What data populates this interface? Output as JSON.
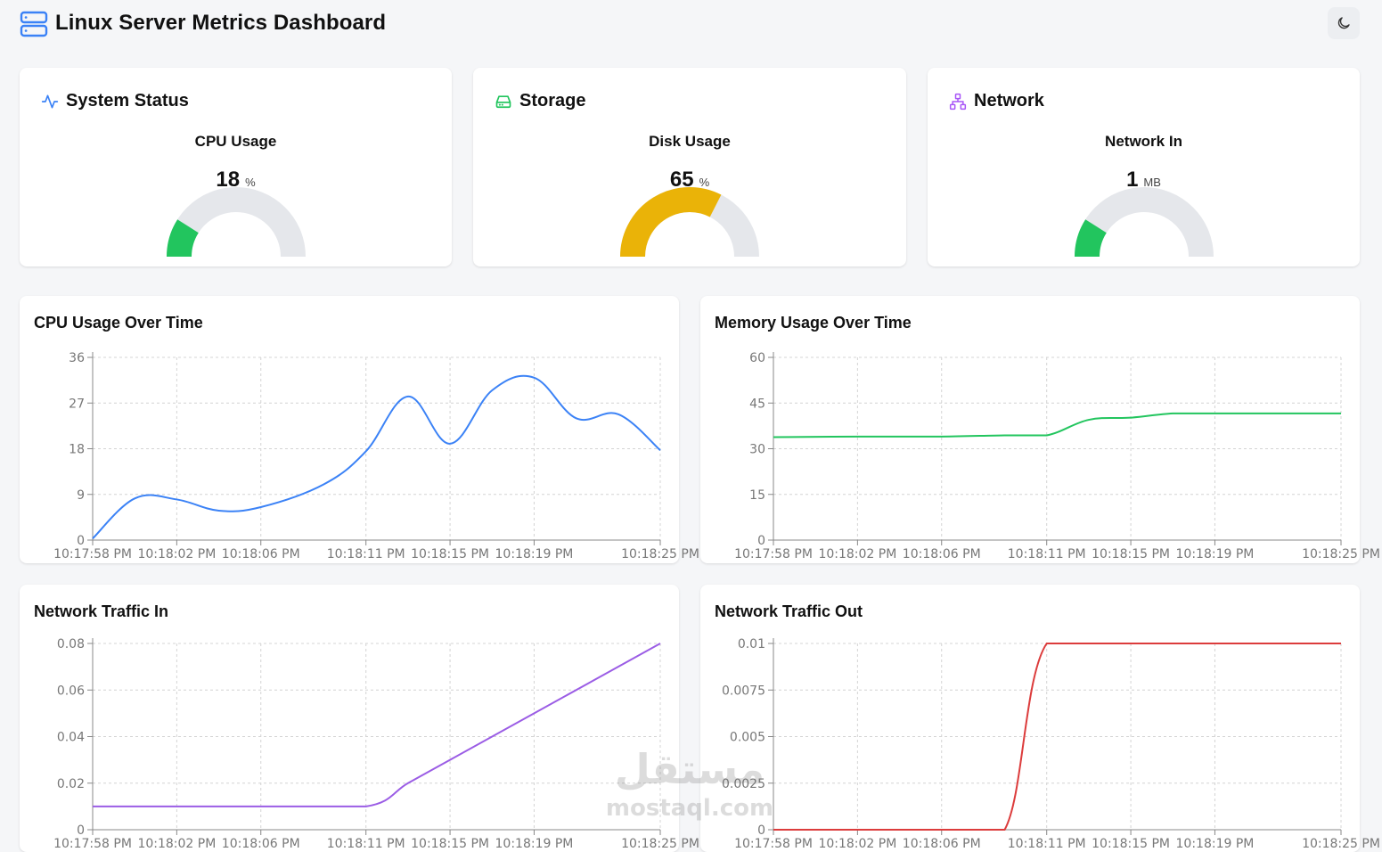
{
  "header": {
    "title": "Linux Server Metrics Dashboard",
    "logo_icon": "server-icon",
    "theme_toggle_icon": "moon-icon"
  },
  "stat_cards": [
    {
      "id": "system-status",
      "title": "System Status",
      "icon": "activity-icon",
      "icon_color": "#3b82f6",
      "metric_label": "CPU Usage",
      "value": 18,
      "value_text": "18",
      "unit": "%",
      "gauge_max": 100,
      "gauge_color": "#22c55e"
    },
    {
      "id": "storage",
      "title": "Storage",
      "icon": "hard-drive-icon",
      "icon_color": "#22c55e",
      "metric_label": "Disk Usage",
      "value": 65,
      "value_text": "65",
      "unit": "%",
      "gauge_max": 100,
      "gauge_color": "#eab308"
    },
    {
      "id": "network",
      "title": "Network",
      "icon": "network-icon",
      "icon_color": "#a855f7",
      "metric_label": "Network In",
      "value": 1,
      "value_text": "1",
      "unit": "MB",
      "gauge_fraction": 0.18,
      "gauge_color": "#22c55e"
    }
  ],
  "chart_data": [
    {
      "type": "line",
      "title": "CPU Usage Over Time",
      "color": "#3b82f6",
      "y_ticks": [
        "0",
        "9",
        "18",
        "27",
        "36"
      ],
      "ylim": [
        0,
        36
      ],
      "x_ticks": [
        "10:17:58 PM",
        "10:18:02 PM",
        "10:18:06 PM",
        "10:18:11 PM",
        "10:18:15 PM",
        "10:18:19 PM",
        "10:18:25 PM"
      ],
      "x": [
        "10:17:58 PM",
        "10:18:00 PM",
        "10:18:02 PM",
        "10:18:04 PM",
        "10:18:06 PM",
        "10:18:09 PM",
        "10:18:11 PM",
        "10:18:13 PM",
        "10:18:15 PM",
        "10:18:17 PM",
        "10:18:19 PM",
        "10:18:21 PM",
        "10:18:23 PM",
        "10:18:25 PM"
      ],
      "values": [
        0.3,
        8.2,
        8.0,
        5.8,
        6.5,
        11.0,
        17.5,
        28.3,
        19.0,
        29.5,
        32.0,
        24.0,
        24.8,
        17.7
      ]
    },
    {
      "type": "line",
      "title": "Memory Usage Over Time",
      "color": "#22c55e",
      "y_ticks": [
        "0",
        "15",
        "30",
        "45",
        "60"
      ],
      "ylim": [
        0,
        60
      ],
      "x_ticks": [
        "10:17:58 PM",
        "10:18:02 PM",
        "10:18:06 PM",
        "10:18:11 PM",
        "10:18:15 PM",
        "10:18:19 PM",
        "10:18:25 PM"
      ],
      "x": [
        "10:17:58 PM",
        "10:18:02 PM",
        "10:18:06 PM",
        "10:18:09 PM",
        "10:18:11 PM",
        "10:18:13 PM",
        "10:18:15 PM",
        "10:18:17 PM",
        "10:18:19 PM",
        "10:18:25 PM"
      ],
      "values": [
        33.8,
        34.0,
        34.0,
        34.4,
        34.4,
        39.5,
        40.2,
        41.6,
        41.6,
        41.6
      ]
    },
    {
      "type": "line",
      "title": "Network Traffic In",
      "color": "#9b5de5",
      "y_ticks": [
        "0",
        "0.02",
        "0.04",
        "0.06",
        "0.08"
      ],
      "ylim": [
        0,
        0.08
      ],
      "x_ticks": [
        "10:17:58 PM",
        "10:18:02 PM",
        "10:18:06 PM",
        "10:18:11 PM",
        "10:18:15 PM",
        "10:18:19 PM",
        "10:18:25 PM"
      ],
      "x": [
        "10:17:58 PM",
        "10:18:02 PM",
        "10:18:06 PM",
        "10:18:11 PM",
        "10:18:13 PM",
        "10:18:15 PM",
        "10:18:19 PM",
        "10:18:25 PM"
      ],
      "values": [
        0.01,
        0.01,
        0.01,
        0.01,
        0.02,
        0.03,
        0.05,
        0.08
      ]
    },
    {
      "type": "line",
      "title": "Network Traffic Out",
      "color": "#dc3c3c",
      "y_ticks": [
        "0",
        "0.0025",
        "0.005",
        "0.0075",
        "0.01"
      ],
      "ylim": [
        0,
        0.01
      ],
      "x_ticks": [
        "10:17:58 PM",
        "10:18:02 PM",
        "10:18:06 PM",
        "10:18:11 PM",
        "10:18:15 PM",
        "10:18:19 PM",
        "10:18:25 PM"
      ],
      "x": [
        "10:17:58 PM",
        "10:18:02 PM",
        "10:18:06 PM",
        "10:18:09 PM",
        "10:18:11 PM",
        "10:18:15 PM",
        "10:18:19 PM",
        "10:18:25 PM"
      ],
      "values": [
        0,
        0,
        0,
        0,
        0.01,
        0.01,
        0.01,
        0.01
      ]
    }
  ],
  "watermark": {
    "arabic": "مستقل",
    "latin": "mostaql.com"
  }
}
